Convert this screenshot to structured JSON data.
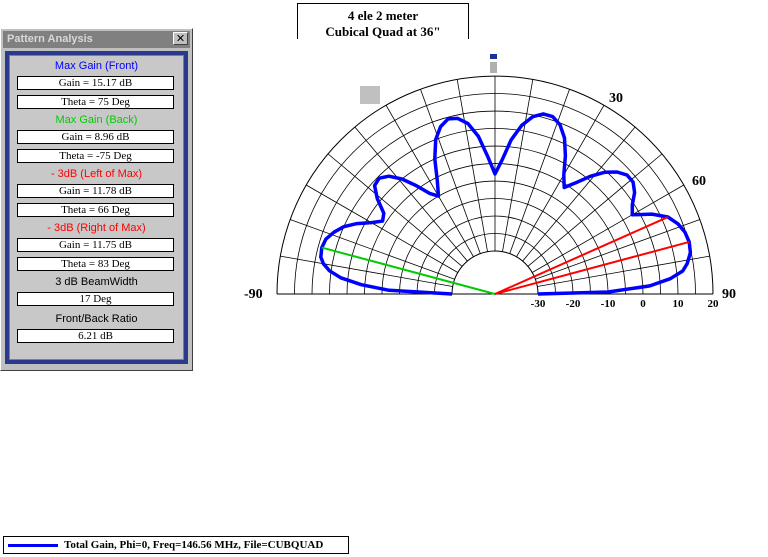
{
  "panel": {
    "title": "Pattern Analysis",
    "close_glyph": "✕",
    "sections": [
      {
        "heading": "Max Gain (Front)",
        "color": "#0000ff",
        "values": [
          "Gain = 15.17 dB",
          "Theta = 75 Deg"
        ]
      },
      {
        "heading": "Max Gain (Back)",
        "color": "#00cc00",
        "values": [
          "Gain = 8.96 dB",
          "Theta = -75 Deg"
        ]
      },
      {
        "heading": "- 3dB (Left of Max)",
        "color": "#ff0000",
        "values": [
          "Gain = 11.78 dB",
          "Theta = 66 Deg"
        ]
      },
      {
        "heading": "- 3dB (Right of Max)",
        "color": "#ff0000",
        "values": [
          "Gain = 11.75 dB",
          "Theta = 83 Deg"
        ]
      },
      {
        "heading": "3 dB BeamWidth",
        "color": "#000000",
        "values": [
          "17 Deg"
        ]
      },
      {
        "heading": "Front/Back Ratio",
        "color": "#000000",
        "values": [
          "6.21 dB"
        ]
      }
    ]
  },
  "plot_title": {
    "line1": "4 ele 2 meter",
    "line2": "Cubical Quad at 36\""
  },
  "legend": {
    "text": "Total Gain, Phi=0, Freq=146.56 MHz, File=CUBQUAD",
    "color": "#0000ff"
  },
  "chart_data": {
    "type": "polar",
    "angle_labels": {
      "left": "-90",
      "top_right_30": "30",
      "right_60": "60",
      "right": "90"
    },
    "radial_tick_labels": [
      "-30",
      "-20",
      "-10",
      "0",
      "10",
      "20"
    ],
    "radial_range_db": [
      -30,
      20
    ],
    "angle_range_deg": [
      -90,
      90
    ],
    "grid": true,
    "series": [
      {
        "name": "Total Gain, Phi=0, Freq=146.56 MHz, File=CUBQUAD",
        "color": "#0000ff",
        "points_theta_db": [
          [
            -90,
            -30
          ],
          [
            -88,
            -12
          ],
          [
            -86,
            -4
          ],
          [
            -84,
            2
          ],
          [
            -82,
            5.5
          ],
          [
            -80,
            7.5
          ],
          [
            -78,
            8.6
          ],
          [
            -75,
            8.96
          ],
          [
            -72,
            8.5
          ],
          [
            -69,
            7
          ],
          [
            -66,
            5
          ],
          [
            -63,
            2
          ],
          [
            -60,
            -1.5
          ],
          [
            -57,
            -4
          ],
          [
            -54,
            -3
          ],
          [
            -51,
            1
          ],
          [
            -48,
            4
          ],
          [
            -45,
            4.5
          ],
          [
            -42,
            3
          ],
          [
            -39,
            0
          ],
          [
            -36,
            -4
          ],
          [
            -33,
            -8
          ],
          [
            -30,
            -10
          ],
          [
            -27,
            -6
          ],
          [
            -24,
            0
          ],
          [
            -21,
            5
          ],
          [
            -18,
            8
          ],
          [
            -15,
            9.5
          ],
          [
            -12,
            9
          ],
          [
            -9,
            7
          ],
          [
            -6,
            3
          ],
          [
            -3,
            -3
          ],
          [
            0,
            -8
          ],
          [
            3,
            -4
          ],
          [
            6,
            2
          ],
          [
            9,
            6.5
          ],
          [
            12,
            9.5
          ],
          [
            15,
            11
          ],
          [
            18,
            11
          ],
          [
            21,
            9.5
          ],
          [
            24,
            6.5
          ],
          [
            27,
            2
          ],
          [
            30,
            -3
          ],
          [
            33,
            -6
          ],
          [
            36,
            -3
          ],
          [
            39,
            1
          ],
          [
            42,
            4.5
          ],
          [
            45,
            7
          ],
          [
            48,
            8.5
          ],
          [
            51,
            8.5
          ],
          [
            54,
            7
          ],
          [
            57,
            4.5
          ],
          [
            60,
            3
          ],
          [
            63,
            8
          ],
          [
            66,
            11.78
          ],
          [
            69,
            13.7
          ],
          [
            72,
            14.8
          ],
          [
            75,
            15.17
          ],
          [
            78,
            14.8
          ],
          [
            81,
            13.3
          ],
          [
            83,
            11.75
          ],
          [
            85,
            8
          ],
          [
            87,
            2
          ],
          [
            89,
            -10
          ],
          [
            90,
            -30
          ]
        ]
      }
    ],
    "markers": [
      {
        "name": "Max Gain (Back)",
        "theta": -75,
        "db": 8.96,
        "color": "#00cc00"
      },
      {
        "name": "-3dB Left",
        "theta": 66,
        "db": 11.78,
        "color": "#ff0000"
      },
      {
        "name": "Max Gain (Front)",
        "theta": 75,
        "db": 15.17,
        "color": "#ff0000"
      }
    ]
  }
}
